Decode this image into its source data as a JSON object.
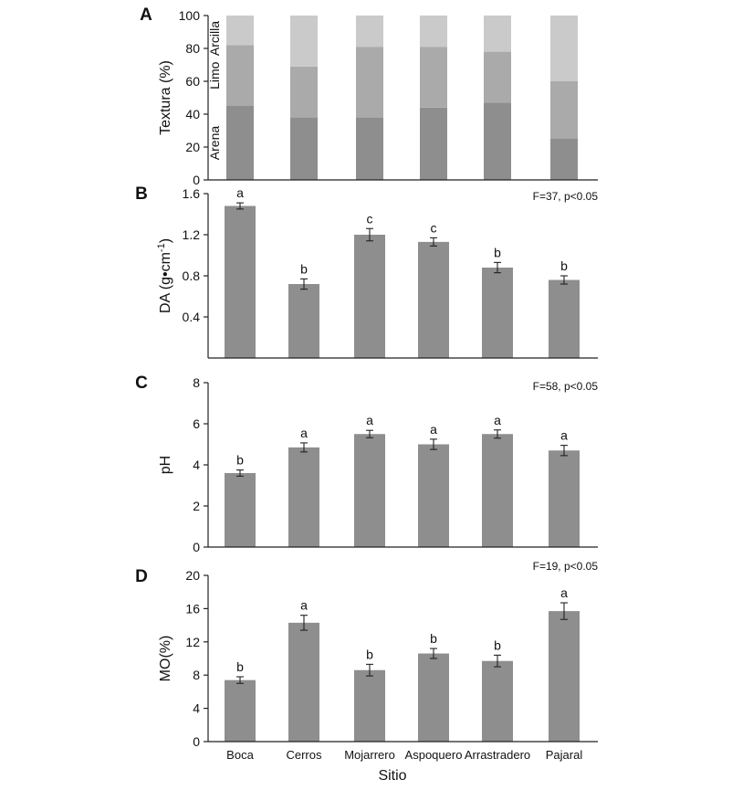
{
  "x_axis_title": "Sitio",
  "categories": [
    "Boca",
    "Cerros",
    "Mojarrero",
    "Aspoquero",
    "Arrastradero",
    "Pajaral"
  ],
  "colors": {
    "bar": "#8e8e8e",
    "arena": "#8e8e8e",
    "limo": "#aaaaaa",
    "arcilla": "#cacaca",
    "axis": "#222222"
  },
  "chart_data": [
    {
      "panel": "A",
      "type": "bar",
      "stacked": true,
      "ylabel": "Textura (%)",
      "ylim": [
        0,
        100
      ],
      "yticks": [
        0,
        20,
        40,
        60,
        80,
        100
      ],
      "categories": [
        "Boca",
        "Cerros",
        "Mojarrero",
        "Aspoquero",
        "Arrastradero",
        "Pajaral"
      ],
      "series": [
        {
          "name": "Arena",
          "values": [
            45,
            38,
            38,
            44,
            47,
            25
          ]
        },
        {
          "name": "Limo",
          "values": [
            37,
            31,
            43,
            37,
            31,
            35
          ]
        },
        {
          "name": "Arcilla",
          "values": [
            18,
            31,
            19,
            19,
            22,
            40
          ]
        }
      ]
    },
    {
      "panel": "B",
      "type": "bar",
      "ylabel_main": "DA (g•cm",
      "ylabel_sup": "-1",
      "ylabel_end": ")",
      "ylim": [
        0,
        1.6
      ],
      "yticks": [
        "0.4",
        "0.8",
        "1.2",
        "1.6"
      ],
      "stat": "F=37, p<0.05",
      "categories": [
        "Boca",
        "Cerros",
        "Mojarrero",
        "Aspoquero",
        "Arrastradero",
        "Pajaral"
      ],
      "values": [
        1.48,
        0.72,
        1.2,
        1.13,
        0.88,
        0.76
      ],
      "errors": [
        0.03,
        0.05,
        0.06,
        0.04,
        0.05,
        0.04
      ],
      "letters": [
        "a",
        "b",
        "c",
        "c",
        "b",
        "b"
      ]
    },
    {
      "panel": "C",
      "type": "bar",
      "ylabel": "pH",
      "ylim": [
        0,
        8
      ],
      "yticks": [
        "0",
        "2",
        "4",
        "6",
        "8"
      ],
      "stat": "F=58, p<0.05",
      "categories": [
        "Boca",
        "Cerros",
        "Mojarrero",
        "Aspoquero",
        "Arrastradero",
        "Pajaral"
      ],
      "values": [
        3.6,
        4.85,
        5.5,
        5.0,
        5.5,
        4.7
      ],
      "errors": [
        0.15,
        0.22,
        0.18,
        0.25,
        0.2,
        0.25
      ],
      "letters": [
        "b",
        "a",
        "a",
        "a",
        "a",
        "a"
      ]
    },
    {
      "panel": "D",
      "type": "bar",
      "ylabel": "MO(%)",
      "ylim": [
        0,
        20
      ],
      "yticks": [
        "0",
        "4",
        "8",
        "12",
        "16",
        "20"
      ],
      "stat": "F=19, p<0.05",
      "categories": [
        "Boca",
        "Cerros",
        "Mojarrero",
        "Aspoquero",
        "Arrastradero",
        "Pajaral"
      ],
      "values": [
        7.4,
        14.3,
        8.6,
        10.6,
        9.7,
        15.7
      ],
      "errors": [
        0.4,
        0.9,
        0.7,
        0.6,
        0.7,
        1.0
      ],
      "letters": [
        "b",
        "a",
        "b",
        "b",
        "b",
        "a"
      ]
    }
  ]
}
